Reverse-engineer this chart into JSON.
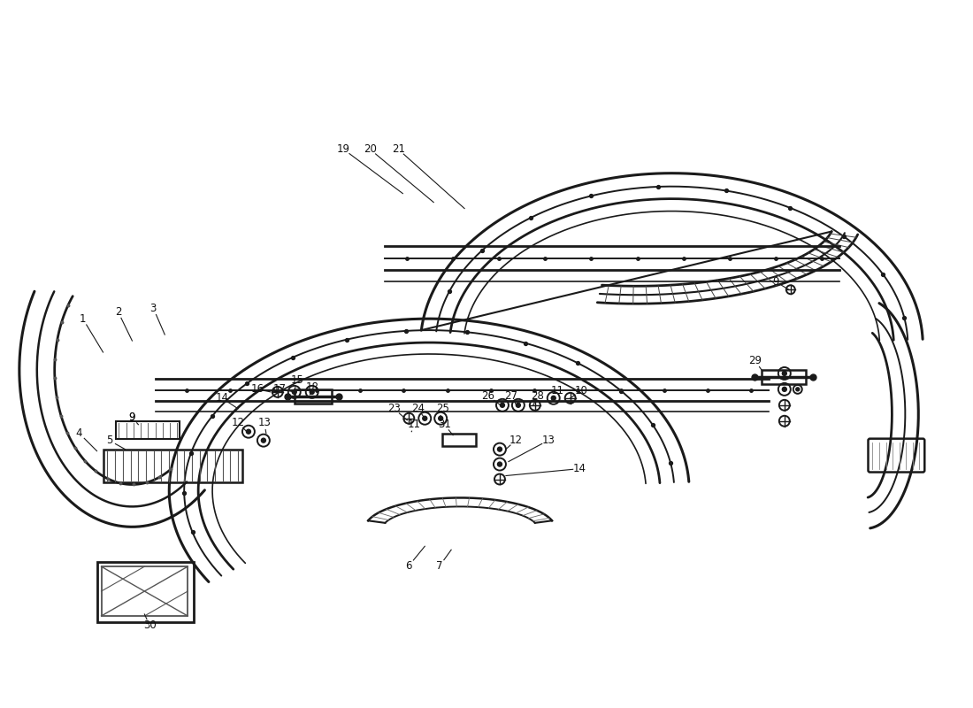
{
  "bg_color": "#ffffff",
  "line_color": "#1a1a1a",
  "fig_width": 11.0,
  "fig_height": 8.0,
  "dpi": 100,
  "annotations": {
    "font_size": 8.5,
    "font_color": "#111111",
    "font_family": "DejaVu Sans"
  }
}
